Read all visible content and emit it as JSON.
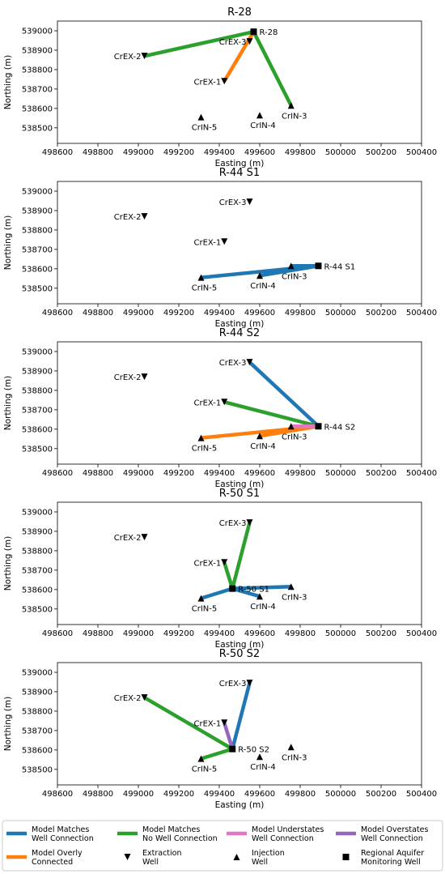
{
  "figure": {
    "x_axis_label": "Easting (m)",
    "y_axis_label": "Northing (m)",
    "xlim": [
      498600,
      500400
    ],
    "ylim": [
      538420,
      539050
    ],
    "x_ticks": [
      498600,
      498800,
      499000,
      499200,
      499400,
      499600,
      499800,
      500000,
      500200,
      500400
    ],
    "y_ticks": [
      538500,
      538600,
      538700,
      538800,
      538900,
      539000
    ],
    "colors": {
      "model_matches_well_connection": "#1f77b4",
      "model_matches_no_well_connection": "#2ca02c",
      "model_understates_well_connection": "#e377c2",
      "model_overstates_well_connection": "#9467bd",
      "model_overly_connected": "#ff7f0e"
    },
    "legend": {
      "placement": "bottom",
      "entries": [
        {
          "label": "Model Matches Well Connection",
          "lines": [
            "Model Matches",
            "Well Connection"
          ],
          "marker": "line",
          "color": "#1f77b4"
        },
        {
          "label": "Model Matches No Well Connection",
          "lines": [
            "Model Matches",
            "No Well Connection"
          ],
          "marker": "line",
          "color": "#2ca02c"
        },
        {
          "label": "Model Understates Well Connection",
          "lines": [
            "Model Understates",
            "Well Connection"
          ],
          "marker": "line",
          "color": "#e377c2"
        },
        {
          "label": "Model Overstates Well Connection",
          "lines": [
            "Model Overstates",
            "Well Connection"
          ],
          "marker": "line",
          "color": "#9467bd"
        },
        {
          "label": "Model Overly Connected",
          "lines": [
            "Model Overly",
            "Connected"
          ],
          "marker": "line",
          "color": "#ff7f0e"
        },
        {
          "label": "Extraction Well",
          "lines": [
            "Extraction",
            "Well"
          ],
          "marker": "triangle-down",
          "color": "#000000"
        },
        {
          "label": "Injection Well",
          "lines": [
            "Injection",
            "Well"
          ],
          "marker": "triangle-up",
          "color": "#000000"
        },
        {
          "label": "Regional Aquifer Monitoring Well",
          "lines": [
            "Regional Aquifer",
            "Monitoring Well"
          ],
          "marker": "square",
          "color": "#000000"
        }
      ]
    }
  },
  "chart_data": [
    {
      "type": "scatter",
      "title": "R-28",
      "xlabel": "Easting (m)",
      "ylabel": "Northing (m)",
      "xlim": [
        498600,
        500400
      ],
      "ylim": [
        538420,
        539050
      ],
      "grid": false,
      "wells": [
        {
          "name": "CrEX-2",
          "x": 499030,
          "y": 538870,
          "kind": "extraction"
        },
        {
          "name": "CrEX-3",
          "x": 499550,
          "y": 538945,
          "kind": "extraction"
        },
        {
          "name": "CrEX-1",
          "x": 499425,
          "y": 538740,
          "kind": "extraction"
        },
        {
          "name": "CrIN-5",
          "x": 499310,
          "y": 538555,
          "kind": "injection"
        },
        {
          "name": "CrIN-4",
          "x": 499600,
          "y": 538565,
          "kind": "injection"
        },
        {
          "name": "CrIN-3",
          "x": 499755,
          "y": 538615,
          "kind": "injection"
        },
        {
          "name": "R-28",
          "x": 499570,
          "y": 538995,
          "kind": "monitoring"
        }
      ],
      "connections": [
        {
          "from": "R-28",
          "to": "CrEX-2",
          "category": "Model Matches No Well Connection",
          "color": "#2ca02c"
        },
        {
          "from": "R-28",
          "to": "CrIN-3",
          "category": "Model Matches No Well Connection",
          "color": "#2ca02c"
        },
        {
          "from": "R-28",
          "to": "CrEX-1",
          "category": "Model Overly Connected",
          "color": "#ff7f0e"
        }
      ]
    },
    {
      "type": "scatter",
      "title": "R-44 S1",
      "xlabel": "Easting (m)",
      "ylabel": "Northing (m)",
      "xlim": [
        498600,
        500400
      ],
      "ylim": [
        538420,
        539050
      ],
      "grid": false,
      "wells": [
        {
          "name": "CrEX-2",
          "x": 499030,
          "y": 538870,
          "kind": "extraction"
        },
        {
          "name": "CrEX-3",
          "x": 499550,
          "y": 538945,
          "kind": "extraction"
        },
        {
          "name": "CrEX-1",
          "x": 499425,
          "y": 538740,
          "kind": "extraction"
        },
        {
          "name": "CrIN-5",
          "x": 499310,
          "y": 538555,
          "kind": "injection"
        },
        {
          "name": "CrIN-4",
          "x": 499600,
          "y": 538565,
          "kind": "injection"
        },
        {
          "name": "CrIN-3",
          "x": 499755,
          "y": 538615,
          "kind": "injection"
        },
        {
          "name": "R-44 S1",
          "x": 499890,
          "y": 538615,
          "kind": "monitoring"
        }
      ],
      "connections": [
        {
          "from": "R-44 S1",
          "to": "CrIN-5",
          "category": "Model Matches Well Connection",
          "color": "#1f77b4"
        },
        {
          "from": "R-44 S1",
          "to": "CrIN-3",
          "category": "Model Matches Well Connection",
          "color": "#1f77b4"
        },
        {
          "from": "R-44 S1",
          "to": "CrIN-4",
          "category": "Model Matches Well Connection",
          "color": "#1f77b4"
        }
      ]
    },
    {
      "type": "scatter",
      "title": "R-44 S2",
      "xlabel": "Easting (m)",
      "ylabel": "Northing (m)",
      "xlim": [
        498600,
        500400
      ],
      "ylim": [
        538420,
        539050
      ],
      "grid": false,
      "wells": [
        {
          "name": "CrEX-2",
          "x": 499030,
          "y": 538870,
          "kind": "extraction"
        },
        {
          "name": "CrEX-3",
          "x": 499550,
          "y": 538945,
          "kind": "extraction"
        },
        {
          "name": "CrEX-1",
          "x": 499425,
          "y": 538740,
          "kind": "extraction"
        },
        {
          "name": "CrIN-5",
          "x": 499310,
          "y": 538555,
          "kind": "injection"
        },
        {
          "name": "CrIN-4",
          "x": 499600,
          "y": 538565,
          "kind": "injection"
        },
        {
          "name": "CrIN-3",
          "x": 499755,
          "y": 538615,
          "kind": "injection"
        },
        {
          "name": "R-44 S2",
          "x": 499890,
          "y": 538615,
          "kind": "monitoring"
        }
      ],
      "connections": [
        {
          "from": "R-44 S2",
          "to": "CrEX-3",
          "category": "Model Matches Well Connection",
          "color": "#1f77b4"
        },
        {
          "from": "R-44 S2",
          "to": "CrEX-1",
          "category": "Model Matches No Well Connection",
          "color": "#2ca02c"
        },
        {
          "from": "R-44 S2",
          "to": "CrIN-5",
          "category": "Model Overly Connected",
          "color": "#ff7f0e"
        },
        {
          "from": "R-44 S2",
          "to": "CrIN-4",
          "category": "Model Overly Connected",
          "color": "#ff7f0e"
        },
        {
          "from": "R-44 S2",
          "to": "CrIN-3",
          "category": "Model Understates Well Connection",
          "color": "#e377c2"
        }
      ]
    },
    {
      "type": "scatter",
      "title": "R-50 S1",
      "xlabel": "Easting (m)",
      "ylabel": "Northing (m)",
      "xlim": [
        498600,
        500400
      ],
      "ylim": [
        538420,
        539050
      ],
      "grid": false,
      "wells": [
        {
          "name": "CrEX-2",
          "x": 499030,
          "y": 538870,
          "kind": "extraction"
        },
        {
          "name": "CrEX-3",
          "x": 499550,
          "y": 538945,
          "kind": "extraction"
        },
        {
          "name": "CrEX-1",
          "x": 499425,
          "y": 538740,
          "kind": "extraction"
        },
        {
          "name": "CrIN-5",
          "x": 499310,
          "y": 538555,
          "kind": "injection"
        },
        {
          "name": "CrIN-4",
          "x": 499600,
          "y": 538565,
          "kind": "injection"
        },
        {
          "name": "CrIN-3",
          "x": 499755,
          "y": 538615,
          "kind": "injection"
        },
        {
          "name": "R-50 S1",
          "x": 499465,
          "y": 538605,
          "kind": "monitoring"
        }
      ],
      "connections": [
        {
          "from": "R-50 S1",
          "to": "CrEX-3",
          "category": "Model Matches No Well Connection",
          "color": "#2ca02c"
        },
        {
          "from": "R-50 S1",
          "to": "CrEX-1",
          "category": "Model Matches No Well Connection",
          "color": "#2ca02c"
        },
        {
          "from": "R-50 S1",
          "to": "CrIN-5",
          "category": "Model Matches Well Connection",
          "color": "#1f77b4"
        },
        {
          "from": "R-50 S1",
          "to": "CrIN-4",
          "category": "Model Matches Well Connection",
          "color": "#1f77b4"
        },
        {
          "from": "R-50 S1",
          "to": "CrIN-3",
          "category": "Model Matches Well Connection",
          "color": "#1f77b4"
        }
      ]
    },
    {
      "type": "scatter",
      "title": "R-50 S2",
      "xlabel": "Easting (m)",
      "ylabel": "Northing (m)",
      "xlim": [
        498600,
        500400
      ],
      "ylim": [
        538420,
        539050
      ],
      "grid": false,
      "wells": [
        {
          "name": "CrEX-2",
          "x": 499030,
          "y": 538870,
          "kind": "extraction"
        },
        {
          "name": "CrEX-3",
          "x": 499550,
          "y": 538945,
          "kind": "extraction"
        },
        {
          "name": "CrEX-1",
          "x": 499425,
          "y": 538740,
          "kind": "extraction"
        },
        {
          "name": "CrIN-5",
          "x": 499310,
          "y": 538555,
          "kind": "injection"
        },
        {
          "name": "CrIN-4",
          "x": 499600,
          "y": 538565,
          "kind": "injection"
        },
        {
          "name": "CrIN-3",
          "x": 499755,
          "y": 538615,
          "kind": "injection"
        },
        {
          "name": "R-50 S2",
          "x": 499465,
          "y": 538605,
          "kind": "monitoring"
        }
      ],
      "connections": [
        {
          "from": "R-50 S2",
          "to": "CrEX-2",
          "category": "Model Matches No Well Connection",
          "color": "#2ca02c"
        },
        {
          "from": "R-50 S2",
          "to": "CrEX-3",
          "category": "Model Matches Well Connection",
          "color": "#1f77b4"
        },
        {
          "from": "R-50 S2",
          "to": "CrEX-1",
          "category": "Model Overstates Well Connection",
          "color": "#9467bd"
        },
        {
          "from": "R-50 S2",
          "to": "CrIN-5",
          "category": "Model Matches No Well Connection",
          "color": "#2ca02c"
        }
      ]
    }
  ]
}
